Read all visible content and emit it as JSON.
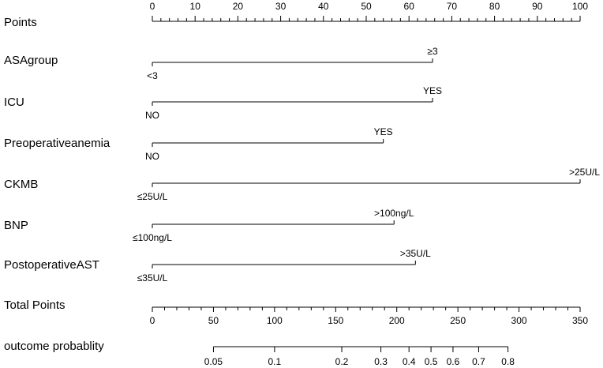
{
  "chart_data": {
    "type": "nomogram",
    "points_axis": {
      "label": "Points",
      "range": [
        0,
        100
      ],
      "major_ticks": [
        0,
        10,
        20,
        30,
        40,
        50,
        60,
        70,
        80,
        90,
        100
      ],
      "tick_labels": [
        "0",
        "10",
        "20",
        "30",
        "40",
        "50",
        "60",
        "70",
        "80",
        "90",
        "100"
      ],
      "minor_step": 2
    },
    "variables": [
      {
        "name": "ASAgroup",
        "levels": [
          {
            "label": "<3",
            "points": 0,
            "label_side": "below"
          },
          {
            "label": "≥3",
            "points": 65.5,
            "label_side": "above"
          }
        ]
      },
      {
        "name": "ICU",
        "levels": [
          {
            "label": "NO",
            "points": 0,
            "label_side": "below"
          },
          {
            "label": "YES",
            "points": 65.5,
            "label_side": "above"
          }
        ]
      },
      {
        "name": "Preoperativeanemia",
        "levels": [
          {
            "label": "NO",
            "points": 0,
            "label_side": "below"
          },
          {
            "label": "YES",
            "points": 54,
            "label_side": "above"
          }
        ]
      },
      {
        "name": "CKMB",
        "levels": [
          {
            "label": "≤25U/L",
            "points": 0,
            "label_side": "below"
          },
          {
            "label": ">25U/L",
            "points": 100,
            "label_side": "above"
          }
        ]
      },
      {
        "name": "BNP",
        "levels": [
          {
            "label": "≤100ng/L",
            "points": 0,
            "label_side": "below"
          },
          {
            "label": ">100ng/L",
            "points": 56.5,
            "label_side": "above"
          }
        ]
      },
      {
        "name": "PostoperativeAST",
        "levels": [
          {
            "label": "≤35U/L",
            "points": 0,
            "label_side": "below"
          },
          {
            "label": ">35U/L",
            "points": 61.5,
            "label_side": "above"
          }
        ]
      }
    ],
    "total_points_axis": {
      "label": "Total Points",
      "range": [
        0,
        350
      ],
      "major_ticks": [
        0,
        50,
        100,
        150,
        200,
        250,
        300,
        350
      ],
      "tick_labels": [
        "0",
        "50",
        "100",
        "150",
        "200",
        "250",
        "300",
        "350"
      ],
      "minor_step": 10
    },
    "probability_axis": {
      "label": "outcome probablity",
      "ticks": [
        {
          "label": "0.05",
          "total_points": 50
        },
        {
          "label": "0.1",
          "total_points": 100
        },
        {
          "label": "0.2",
          "total_points": 155
        },
        {
          "label": "0.3",
          "total_points": 187
        },
        {
          "label": "0.4",
          "total_points": 210
        },
        {
          "label": "0.5",
          "total_points": 228
        },
        {
          "label": "0.6",
          "total_points": 246
        },
        {
          "label": "0.7",
          "total_points": 267
        },
        {
          "label": "0.8",
          "total_points": 291
        }
      ]
    },
    "grid": false,
    "legend": "none"
  }
}
